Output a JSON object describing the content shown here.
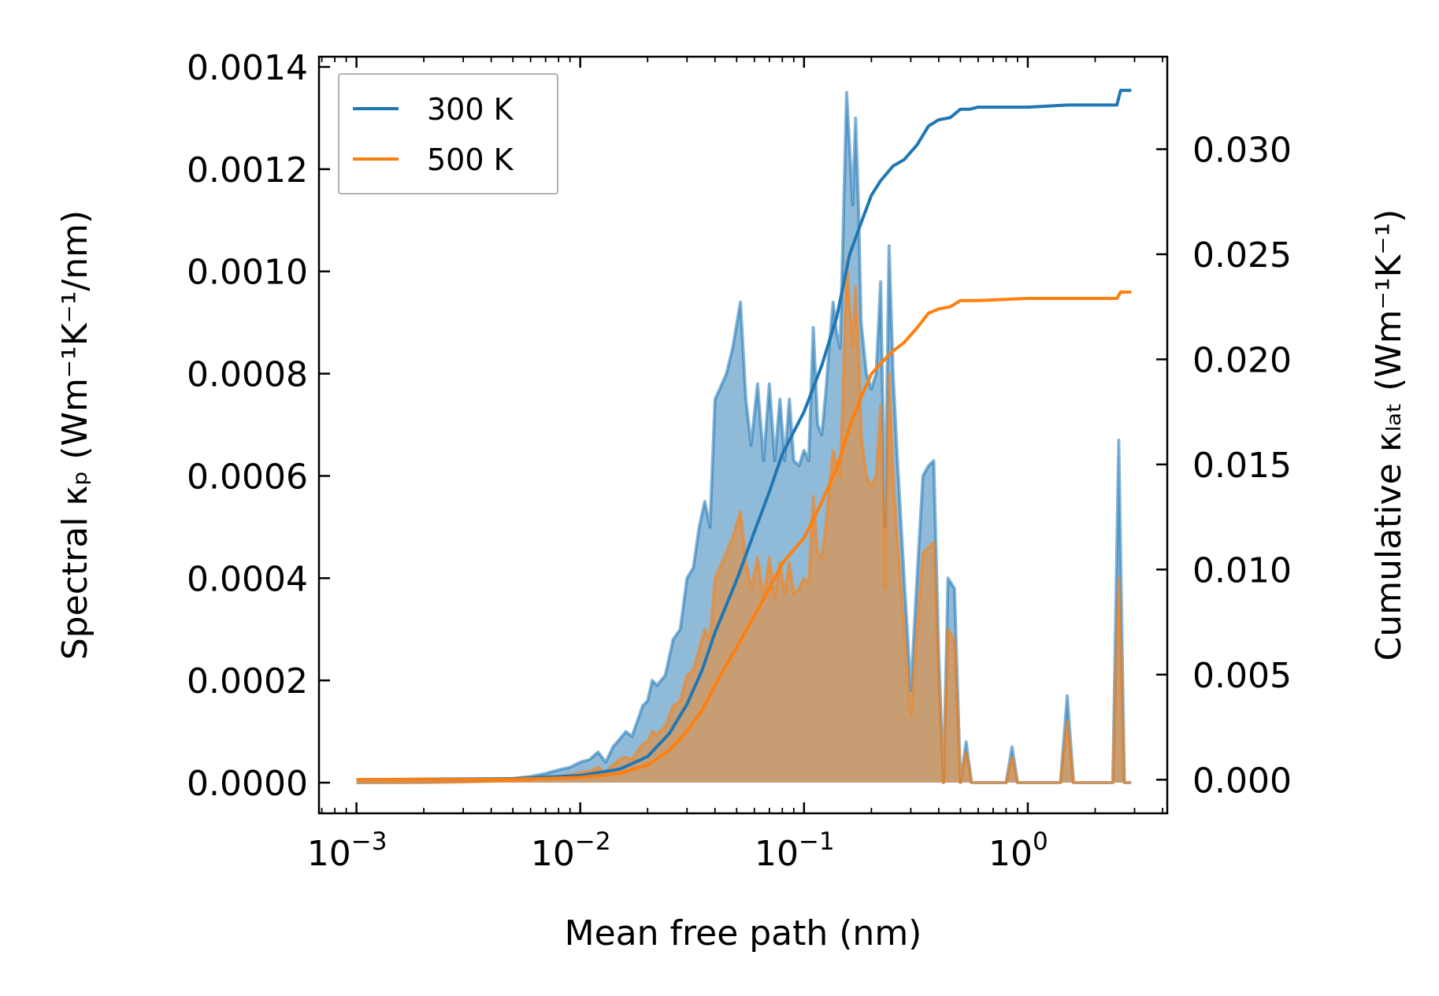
{
  "chart_data": {
    "type": "area",
    "xlabel": "Mean free path (nm)",
    "ylabel_left": "Spectral κₚ (Wm⁻¹K⁻¹/nm)",
    "ylabel_right": "Cumulative κₗₐₜ (Wm⁻¹K⁻¹)",
    "x_scale": "log",
    "xlim": [
      0.00068,
      4.2
    ],
    "ylim_left": [
      -6e-05,
      0.00142
    ],
    "ylim_right": [
      -0.0016,
      0.0344
    ],
    "x_ticks": [
      0.001,
      0.01,
      0.1,
      1
    ],
    "x_tick_labels": [
      {
        "base": "10",
        "exp": "−3"
      },
      {
        "base": "10",
        "exp": "−2"
      },
      {
        "base": "10",
        "exp": "−1"
      },
      {
        "base": "10",
        "exp": "0"
      }
    ],
    "y_left_ticks": [
      0.0,
      0.0002,
      0.0004,
      0.0006,
      0.0008,
      0.001,
      0.0012,
      0.0014
    ],
    "y_left_tick_labels": [
      "0.0000",
      "0.0002",
      "0.0004",
      "0.0006",
      "0.0008",
      "0.0010",
      "0.0012",
      "0.0014"
    ],
    "y_right_ticks": [
      0.0,
      0.005,
      0.01,
      0.015,
      0.02,
      0.025,
      0.03
    ],
    "y_right_tick_labels": [
      "0.000",
      "0.005",
      "0.010",
      "0.015",
      "0.020",
      "0.025",
      "0.030"
    ],
    "legend": {
      "position": "top-left",
      "entries": [
        "300 K",
        "500 K"
      ]
    },
    "series": [
      {
        "name": "300 K",
        "color": "#1f77b4",
        "spectral": [
          [
            0.001,
            0.0
          ],
          [
            0.002,
            1e-06
          ],
          [
            0.003,
            3e-06
          ],
          [
            0.004,
            6e-06
          ],
          [
            0.005,
            8e-06
          ],
          [
            0.006,
            1.2e-05
          ],
          [
            0.007,
            1.8e-05
          ],
          [
            0.008,
            2.5e-05
          ],
          [
            0.009,
            3e-05
          ],
          [
            0.01,
            4e-05
          ],
          [
            0.011,
            4.5e-05
          ],
          [
            0.012,
            6e-05
          ],
          [
            0.013,
            4e-05
          ],
          [
            0.014,
            7e-05
          ],
          [
            0.015,
            8.5e-05
          ],
          [
            0.016,
            0.0001
          ],
          [
            0.017,
            9e-05
          ],
          [
            0.018,
            0.00012
          ],
          [
            0.019,
            0.00015
          ],
          [
            0.02,
            0.00016
          ],
          [
            0.021,
            0.0002
          ],
          [
            0.022,
            0.00019
          ],
          [
            0.024,
            0.00021
          ],
          [
            0.026,
            0.00028
          ],
          [
            0.028,
            0.0003
          ],
          [
            0.03,
            0.0004
          ],
          [
            0.032,
            0.00042
          ],
          [
            0.034,
            0.0005
          ],
          [
            0.036,
            0.00055
          ],
          [
            0.038,
            0.0005
          ],
          [
            0.04,
            0.00075
          ],
          [
            0.042,
            0.00077
          ],
          [
            0.045,
            0.0008
          ],
          [
            0.048,
            0.00085
          ],
          [
            0.052,
            0.00094
          ],
          [
            0.055,
            0.00075
          ],
          [
            0.058,
            0.00066
          ],
          [
            0.062,
            0.00078
          ],
          [
            0.066,
            0.00063
          ],
          [
            0.07,
            0.00078
          ],
          [
            0.074,
            0.00063
          ],
          [
            0.078,
            0.00075
          ],
          [
            0.082,
            0.00063
          ],
          [
            0.086,
            0.00075
          ],
          [
            0.09,
            0.00063
          ],
          [
            0.095,
            0.00062
          ],
          [
            0.1,
            0.00065
          ],
          [
            0.105,
            0.00063
          ],
          [
            0.11,
            0.00089
          ],
          [
            0.115,
            0.0007
          ],
          [
            0.12,
            0.00068
          ],
          [
            0.125,
            0.00076
          ],
          [
            0.13,
            0.00086
          ],
          [
            0.135,
            0.00094
          ],
          [
            0.14,
            0.00088
          ],
          [
            0.145,
            0.00085
          ],
          [
            0.15,
            0.0011
          ],
          [
            0.155,
            0.00135
          ],
          [
            0.16,
            0.00124
          ],
          [
            0.165,
            0.00113
          ],
          [
            0.17,
            0.0013
          ],
          [
            0.175,
            0.00113
          ],
          [
            0.18,
            0.0009
          ],
          [
            0.19,
            0.0008
          ],
          [
            0.2,
            0.00077
          ],
          [
            0.21,
            0.0008
          ],
          [
            0.22,
            0.00098
          ],
          [
            0.23,
            0.0005
          ],
          [
            0.24,
            0.00105
          ],
          [
            0.25,
            0.0008
          ],
          [
            0.26,
            0.00065
          ],
          [
            0.28,
            0.0004
          ],
          [
            0.3,
            0.00018
          ],
          [
            0.32,
            0.0004
          ],
          [
            0.34,
            0.0006
          ],
          [
            0.36,
            0.00062
          ],
          [
            0.38,
            0.00063
          ],
          [
            0.4,
            0.00025
          ],
          [
            0.42,
            0.0
          ],
          [
            0.44,
            0.0004
          ],
          [
            0.47,
            0.00038
          ],
          [
            0.5,
            0.0
          ],
          [
            0.53,
            8e-05
          ],
          [
            0.56,
            0.0
          ],
          [
            0.7,
            0.0
          ],
          [
            0.8,
            0.0
          ],
          [
            0.85,
            7e-05
          ],
          [
            0.9,
            0.0
          ],
          [
            1.2,
            0.0
          ],
          [
            1.4,
            0.0
          ],
          [
            1.5,
            0.00017
          ],
          [
            1.6,
            0.0
          ],
          [
            2.4,
            0.0
          ],
          [
            2.55,
            0.00067
          ],
          [
            2.7,
            0.0
          ],
          [
            2.9,
            0.0
          ]
        ],
        "cumulative": [
          [
            0.001,
            0.0
          ],
          [
            0.005,
            5e-05
          ],
          [
            0.01,
            0.0002
          ],
          [
            0.015,
            0.0005
          ],
          [
            0.02,
            0.0011
          ],
          [
            0.025,
            0.0022
          ],
          [
            0.03,
            0.0036
          ],
          [
            0.035,
            0.0052
          ],
          [
            0.04,
            0.007
          ],
          [
            0.05,
            0.0095
          ],
          [
            0.06,
            0.0118
          ],
          [
            0.07,
            0.0137
          ],
          [
            0.08,
            0.0155
          ],
          [
            0.1,
            0.0175
          ],
          [
            0.12,
            0.0197
          ],
          [
            0.14,
            0.022
          ],
          [
            0.16,
            0.025
          ],
          [
            0.18,
            0.0265
          ],
          [
            0.2,
            0.0278
          ],
          [
            0.22,
            0.0285
          ],
          [
            0.25,
            0.0292
          ],
          [
            0.28,
            0.0295
          ],
          [
            0.32,
            0.0302
          ],
          [
            0.36,
            0.0311
          ],
          [
            0.4,
            0.0314
          ],
          [
            0.45,
            0.0315
          ],
          [
            0.5,
            0.0319
          ],
          [
            0.55,
            0.0319
          ],
          [
            0.6,
            0.032
          ],
          [
            1.0,
            0.032
          ],
          [
            1.5,
            0.0321
          ],
          [
            2.5,
            0.0321
          ],
          [
            2.6,
            0.0328
          ],
          [
            2.9,
            0.0328
          ]
        ]
      },
      {
        "name": "500 K",
        "color": "#ff7f0e",
        "spectral": [
          [
            0.001,
            0.0
          ],
          [
            0.002,
            0.0
          ],
          [
            0.003,
            1e-06
          ],
          [
            0.004,
            3e-06
          ],
          [
            0.005,
            4e-06
          ],
          [
            0.006,
            6e-06
          ],
          [
            0.007,
            9e-06
          ],
          [
            0.008,
            1.2e-05
          ],
          [
            0.009,
            1.6e-05
          ],
          [
            0.01,
            2e-05
          ],
          [
            0.011,
            2.2e-05
          ],
          [
            0.012,
            3e-05
          ],
          [
            0.013,
            2e-05
          ],
          [
            0.014,
            3.5e-05
          ],
          [
            0.015,
            4.5e-05
          ],
          [
            0.016,
            5e-05
          ],
          [
            0.017,
            4.5e-05
          ],
          [
            0.018,
            6e-05
          ],
          [
            0.019,
            7.5e-05
          ],
          [
            0.02,
            8e-05
          ],
          [
            0.021,
            0.0001
          ],
          [
            0.022,
            9.5e-05
          ],
          [
            0.024,
            0.00011
          ],
          [
            0.026,
            0.00015
          ],
          [
            0.028,
            0.00016
          ],
          [
            0.03,
            0.00021
          ],
          [
            0.032,
            0.00022
          ],
          [
            0.034,
            0.00026
          ],
          [
            0.036,
            0.0003
          ],
          [
            0.038,
            0.00028
          ],
          [
            0.04,
            0.0004
          ],
          [
            0.042,
            0.00042
          ],
          [
            0.045,
            0.00045
          ],
          [
            0.048,
            0.00048
          ],
          [
            0.052,
            0.00053
          ],
          [
            0.055,
            0.00043
          ],
          [
            0.058,
            0.00038
          ],
          [
            0.062,
            0.00044
          ],
          [
            0.066,
            0.00036
          ],
          [
            0.07,
            0.00044
          ],
          [
            0.074,
            0.00036
          ],
          [
            0.078,
            0.00043
          ],
          [
            0.082,
            0.00037
          ],
          [
            0.086,
            0.00043
          ],
          [
            0.09,
            0.00037
          ],
          [
            0.095,
            0.00038
          ],
          [
            0.1,
            0.0004
          ],
          [
            0.105,
            0.00039
          ],
          [
            0.11,
            0.00056
          ],
          [
            0.115,
            0.00045
          ],
          [
            0.12,
            0.00044
          ],
          [
            0.125,
            0.0005
          ],
          [
            0.13,
            0.00058
          ],
          [
            0.135,
            0.00065
          ],
          [
            0.14,
            0.00062
          ],
          [
            0.145,
            0.0006
          ],
          [
            0.15,
            0.00078
          ],
          [
            0.155,
            0.00102
          ],
          [
            0.16,
            0.00093
          ],
          [
            0.165,
            0.00085
          ],
          [
            0.17,
            0.00097
          ],
          [
            0.175,
            0.00085
          ],
          [
            0.18,
            0.00068
          ],
          [
            0.19,
            0.0006
          ],
          [
            0.2,
            0.00058
          ],
          [
            0.21,
            0.0006
          ],
          [
            0.22,
            0.00074
          ],
          [
            0.23,
            0.00038
          ],
          [
            0.24,
            0.0008
          ],
          [
            0.25,
            0.0006
          ],
          [
            0.26,
            0.00049
          ],
          [
            0.28,
            0.0003
          ],
          [
            0.3,
            0.00013
          ],
          [
            0.32,
            0.0003
          ],
          [
            0.34,
            0.00045
          ],
          [
            0.36,
            0.00046
          ],
          [
            0.38,
            0.00047
          ],
          [
            0.4,
            0.00019
          ],
          [
            0.42,
            0.0
          ],
          [
            0.44,
            0.0003
          ],
          [
            0.47,
            0.00028
          ],
          [
            0.5,
            0.0
          ],
          [
            0.53,
            6e-05
          ],
          [
            0.56,
            0.0
          ],
          [
            0.7,
            0.0
          ],
          [
            0.8,
            0.0
          ],
          [
            0.85,
            5e-05
          ],
          [
            0.9,
            0.0
          ],
          [
            1.2,
            0.0
          ],
          [
            1.4,
            0.0
          ],
          [
            1.5,
            0.00012
          ],
          [
            1.6,
            0.0
          ],
          [
            2.4,
            0.0
          ],
          [
            2.55,
            0.0004
          ],
          [
            2.7,
            0.0
          ],
          [
            2.9,
            0.0
          ]
        ],
        "cumulative": [
          [
            0.001,
            0.0
          ],
          [
            0.005,
            2e-05
          ],
          [
            0.01,
            0.0001
          ],
          [
            0.015,
            0.0003
          ],
          [
            0.02,
            0.0007
          ],
          [
            0.025,
            0.0014
          ],
          [
            0.03,
            0.0023
          ],
          [
            0.035,
            0.0033
          ],
          [
            0.04,
            0.0045
          ],
          [
            0.05,
            0.0063
          ],
          [
            0.06,
            0.0078
          ],
          [
            0.07,
            0.0091
          ],
          [
            0.08,
            0.0103
          ],
          [
            0.1,
            0.0115
          ],
          [
            0.12,
            0.0132
          ],
          [
            0.14,
            0.0148
          ],
          [
            0.16,
            0.0168
          ],
          [
            0.18,
            0.0182
          ],
          [
            0.2,
            0.0193
          ],
          [
            0.22,
            0.0198
          ],
          [
            0.25,
            0.0204
          ],
          [
            0.28,
            0.0208
          ],
          [
            0.32,
            0.0215
          ],
          [
            0.36,
            0.0222
          ],
          [
            0.4,
            0.0224
          ],
          [
            0.45,
            0.0225
          ],
          [
            0.5,
            0.0228
          ],
          [
            0.55,
            0.0228
          ],
          [
            0.6,
            0.0228
          ],
          [
            1.0,
            0.0229
          ],
          [
            1.5,
            0.0229
          ],
          [
            2.5,
            0.0229
          ],
          [
            2.6,
            0.0232
          ],
          [
            2.9,
            0.0232
          ]
        ]
      }
    ]
  }
}
